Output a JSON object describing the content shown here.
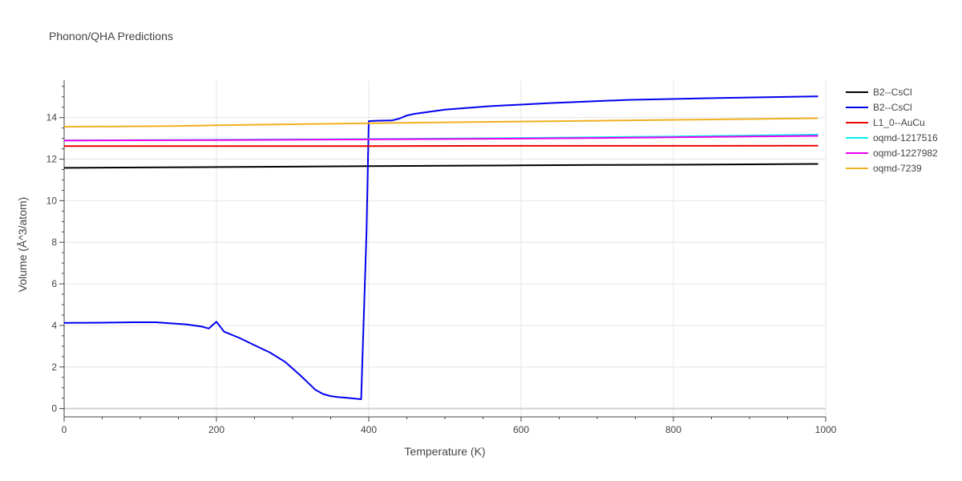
{
  "chart_data": {
    "type": "line",
    "title": "Phonon/QHA Predictions",
    "xlabel": "Temperature (K)",
    "ylabel": "Volume (Å^3/atom)",
    "xlim": [
      0,
      1000
    ],
    "ylim": [
      -0.4,
      15.8
    ],
    "xticks": [
      0,
      200,
      400,
      600,
      800,
      1000
    ],
    "yticks": [
      0,
      2,
      4,
      6,
      8,
      10,
      12,
      14
    ],
    "grid": true,
    "legend_position": "right",
    "series": [
      {
        "name": "B2--CsCl",
        "color": "#000000",
        "x": [
          0,
          100,
          200,
          300,
          400,
          500,
          600,
          700,
          800,
          900,
          990
        ],
        "y": [
          11.58,
          11.6,
          11.62,
          11.64,
          11.66,
          11.68,
          11.7,
          11.72,
          11.73,
          11.75,
          11.77
        ]
      },
      {
        "name": "B2--CsCl",
        "color": "#0000ee",
        "x": [
          0,
          30,
          70,
          90,
          120,
          160,
          180,
          190,
          200,
          210,
          230,
          250,
          270,
          290,
          310,
          320,
          330,
          340,
          350,
          360,
          370,
          390,
          397,
          400,
          410,
          430,
          440,
          450,
          460,
          480,
          500,
          560,
          640,
          740,
          840,
          990
        ],
        "y": [
          4.12,
          4.13,
          4.14,
          4.15,
          4.15,
          4.05,
          3.95,
          3.85,
          4.18,
          3.7,
          3.4,
          3.05,
          2.7,
          2.25,
          1.6,
          1.25,
          0.9,
          0.7,
          0.6,
          0.55,
          0.52,
          0.45,
          8.5,
          13.83,
          13.85,
          13.86,
          13.95,
          14.1,
          14.18,
          14.28,
          14.38,
          14.55,
          14.7,
          14.85,
          14.93,
          15.02
        ]
      },
      {
        "name": "L1_0--AuCu",
        "color": "#ee0000",
        "x": [
          0,
          200,
          400,
          600,
          800,
          990
        ],
        "y": [
          12.63,
          12.63,
          12.63,
          12.64,
          12.64,
          12.65
        ]
      },
      {
        "name": "oqmd-1217516",
        "color": "#00eeee",
        "x": [
          0,
          200,
          400,
          600,
          800,
          990
        ],
        "y": [
          12.9,
          12.93,
          12.97,
          13.02,
          13.09,
          13.18
        ]
      },
      {
        "name": "oqmd-1227982",
        "color": "#ee00ee",
        "x": [
          0,
          200,
          400,
          600,
          800,
          990
        ],
        "y": [
          12.9,
          12.92,
          12.95,
          12.99,
          13.05,
          13.12
        ]
      },
      {
        "name": "oqmd-7239",
        "color": "#f0b020",
        "x": [
          0,
          140,
          200,
          300,
          400,
          500,
          600,
          700,
          800,
          900,
          990
        ],
        "y": [
          13.56,
          13.59,
          13.63,
          13.68,
          13.73,
          13.77,
          13.81,
          13.85,
          13.89,
          13.93,
          13.97
        ]
      }
    ]
  }
}
